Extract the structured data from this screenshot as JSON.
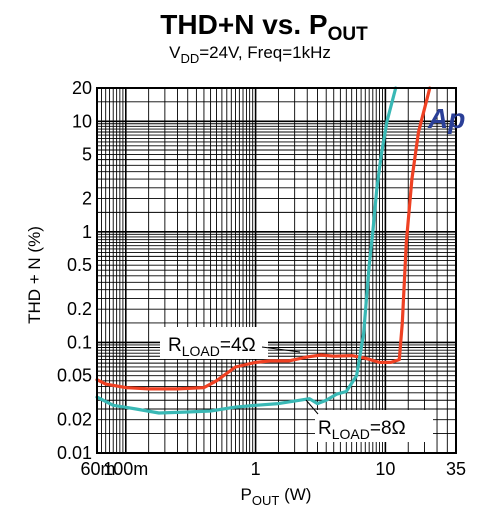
{
  "chart_data": {
    "type": "line",
    "title": "THD+N vs. P",
    "title_sub": "OUT",
    "subtitle_vdd_prefix": "V",
    "subtitle_vdd_sub": "DD",
    "subtitle_rest": "=24V, Freq=1kHz",
    "xlabel": "P",
    "xlabel_sub": "OUT",
    "xlabel_unit": " (W)",
    "ylabel": "THD + N (%)",
    "x_scale": "log",
    "y_scale": "log",
    "xlim": [
      0.06,
      35
    ],
    "ylim": [
      0.01,
      20
    ],
    "x_ticks": [
      {
        "value": 0.06,
        "label": "60m"
      },
      {
        "value": 0.1,
        "label": "100m"
      },
      {
        "value": 1,
        "label": "1"
      },
      {
        "value": 10,
        "label": "10"
      },
      {
        "value": 35,
        "label": "35"
      }
    ],
    "y_ticks": [
      {
        "value": 0.01,
        "label": "0.01"
      },
      {
        "value": 0.02,
        "label": "0.02"
      },
      {
        "value": 0.05,
        "label": "0.05"
      },
      {
        "value": 0.1,
        "label": "0.1"
      },
      {
        "value": 0.2,
        "label": "0.2"
      },
      {
        "value": 0.5,
        "label": "0.5"
      },
      {
        "value": 1,
        "label": "1"
      },
      {
        "value": 2,
        "label": "2"
      },
      {
        "value": 5,
        "label": "5"
      },
      {
        "value": 10,
        "label": "10"
      },
      {
        "value": 20,
        "label": "20"
      }
    ],
    "grid": true,
    "logo_text": "Ap",
    "series": [
      {
        "label_prefix": "R",
        "label_sub": "LOAD",
        "label_suffix": "=4Ω",
        "color": "#ef4123",
        "points": [
          [
            0.06,
            0.046
          ],
          [
            0.07,
            0.042
          ],
          [
            0.1,
            0.039
          ],
          [
            0.15,
            0.038
          ],
          [
            0.25,
            0.038
          ],
          [
            0.4,
            0.039
          ],
          [
            0.5,
            0.045
          ],
          [
            0.7,
            0.06
          ],
          [
            1,
            0.066
          ],
          [
            1.3,
            0.068
          ],
          [
            1.8,
            0.068
          ],
          [
            2.5,
            0.074
          ],
          [
            3.2,
            0.077
          ],
          [
            4,
            0.075
          ],
          [
            5.5,
            0.076
          ],
          [
            7,
            0.072
          ],
          [
            9,
            0.066
          ],
          [
            11,
            0.066
          ],
          [
            12.8,
            0.07
          ],
          [
            13.5,
            0.15
          ],
          [
            14.5,
            0.8
          ],
          [
            16,
            3
          ],
          [
            18,
            8
          ],
          [
            20,
            13
          ],
          [
            22,
            20
          ]
        ]
      },
      {
        "label_prefix": "R",
        "label_sub": "LOAD",
        "label_suffix": "=8Ω",
        "color": "#39b8b5",
        "points": [
          [
            0.06,
            0.032
          ],
          [
            0.08,
            0.027
          ],
          [
            0.12,
            0.025
          ],
          [
            0.18,
            0.023
          ],
          [
            0.3,
            0.0235
          ],
          [
            0.45,
            0.024
          ],
          [
            0.7,
            0.026
          ],
          [
            1,
            0.027
          ],
          [
            1.5,
            0.028
          ],
          [
            2.2,
            0.03
          ],
          [
            2.6,
            0.031
          ],
          [
            3,
            0.028
          ],
          [
            3.5,
            0.03
          ],
          [
            4.2,
            0.034
          ],
          [
            5,
            0.036
          ],
          [
            6,
            0.05
          ],
          [
            6.8,
            0.12
          ],
          [
            7.5,
            0.5
          ],
          [
            8,
            1
          ],
          [
            8.6,
            2.5
          ],
          [
            9.3,
            5
          ],
          [
            10.3,
            10
          ],
          [
            12,
            20
          ]
        ]
      }
    ]
  }
}
